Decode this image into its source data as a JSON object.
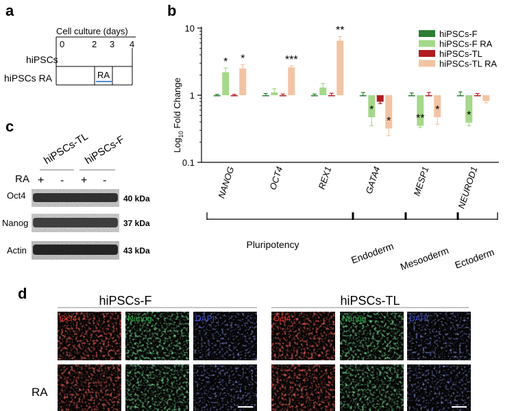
{
  "panels": {
    "a": {
      "letter": "a",
      "header": "Cell culture (days)",
      "days": [
        "0",
        "2",
        "3",
        "4"
      ],
      "rows": [
        "hiPSCs",
        "hiPSCs RA"
      ],
      "treatment": "RA",
      "line_color": "#4a8fd0"
    },
    "b": {
      "letter": "b"
    },
    "c": {
      "letter": "c",
      "col_headers": [
        "hiPSCs-TL",
        "hiPSCs-F"
      ],
      "ra_label": "RA",
      "ra_signs": [
        "+",
        "-",
        "+",
        "-"
      ],
      "bands": [
        {
          "name": "Oct4",
          "kda": "40 kDa"
        },
        {
          "name": "Nanog",
          "kda": "37 kDa"
        },
        {
          "name": "Actin",
          "kda": "43 kDa"
        }
      ]
    },
    "d": {
      "letter": "d",
      "groups": [
        "hiPSCs-F",
        "hiPSCs-TL"
      ],
      "channels": [
        {
          "name": "Oct4",
          "color": "#e8302a"
        },
        {
          "name": "Nanog",
          "color": "#2fb24a"
        },
        {
          "name": "DAPI",
          "color": "#3b4fd6"
        }
      ],
      "row_label": "RA"
    }
  },
  "chart_data": {
    "type": "bar",
    "ylabel": "Log10 Fold Change",
    "ylabel_base": "Log",
    "ylabel_sub": "10",
    "ylabel_rest": " Fold Change",
    "y_scale": "log",
    "ylim": [
      0.1,
      10
    ],
    "yticks": [
      "0.1",
      "1",
      "10"
    ],
    "grid": false,
    "legend_position": "top-right",
    "categories": [
      "NANOG",
      "OCT4",
      "REX1",
      "GATA4",
      "MESP1",
      "NEUROD1"
    ],
    "series": [
      {
        "name": "hiPSCs-F",
        "color": "#2e7d32",
        "values": [
          1.0,
          1.0,
          1.0,
          1.0,
          1.0,
          1.0
        ],
        "errors": [
          0.03,
          0.06,
          0.04,
          0.1,
          0.08,
          0.12
        ]
      },
      {
        "name": "hiPSCs-F RA",
        "color": "#a5d88a",
        "values": [
          2.2,
          1.1,
          1.3,
          0.47,
          0.35,
          0.39
        ],
        "errors": [
          0.35,
          0.15,
          0.2,
          0.12,
          0.02,
          0.04
        ]
      },
      {
        "name": "hiPSCs-TL",
        "color": "#b01c22",
        "values": [
          1.0,
          1.0,
          1.0,
          0.8,
          1.0,
          1.0
        ],
        "errors": [
          0.03,
          0.04,
          0.07,
          0.05,
          0.1,
          0.06
        ]
      },
      {
        "name": "hiPSCs-TL RA",
        "color": "#f2c4a4",
        "values": [
          2.5,
          2.6,
          6.5,
          0.32,
          0.47,
          0.82
        ],
        "errors": [
          0.35,
          0.15,
          1.0,
          0.07,
          0.1,
          0.05
        ]
      }
    ],
    "significance": [
      {
        "category": "NANOG",
        "series": "hiPSCs-F RA",
        "label": "*"
      },
      {
        "category": "NANOG",
        "series": "hiPSCs-TL RA",
        "label": "*"
      },
      {
        "category": "OCT4",
        "series": "hiPSCs-TL RA",
        "label": "***"
      },
      {
        "category": "REX1",
        "series": "hiPSCs-TL RA",
        "label": "**"
      },
      {
        "category": "GATA4",
        "series": "hiPSCs-F RA",
        "label": "*"
      },
      {
        "category": "GATA4",
        "series": "hiPSCs-TL RA",
        "label": "*"
      },
      {
        "category": "MESP1",
        "series": "hiPSCs-F RA",
        "label": "**"
      },
      {
        "category": "MESP1",
        "series": "hiPSCs-TL RA",
        "label": "*"
      },
      {
        "category": "NEUROD1",
        "series": "hiPSCs-F RA",
        "label": "*"
      }
    ],
    "groups": [
      {
        "label": "Pluripotency",
        "from": 0,
        "to": 2
      },
      {
        "label": "Endoderm",
        "from": 3,
        "to": 3
      },
      {
        "label": "Mesooderm",
        "from": 4,
        "to": 4
      },
      {
        "label": "Ectoderm",
        "from": 5,
        "to": 5
      }
    ]
  }
}
